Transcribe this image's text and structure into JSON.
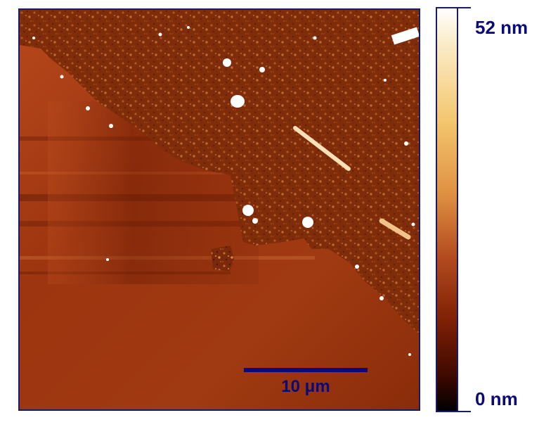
{
  "image": {
    "subject": "atomic force microscopy height map",
    "palette": {
      "dark": "#2a0600",
      "mid": "#9a2f0c",
      "light": "#f3c283",
      "bright": "#ffffff",
      "frame": "#1a1a66"
    }
  },
  "scale_bar": {
    "label": "10 μm",
    "color": "#0a0a78"
  },
  "colorbar": {
    "max_label": "52 nm",
    "min_label": "0 nm",
    "max_value_nm": 52,
    "min_value_nm": 0
  }
}
